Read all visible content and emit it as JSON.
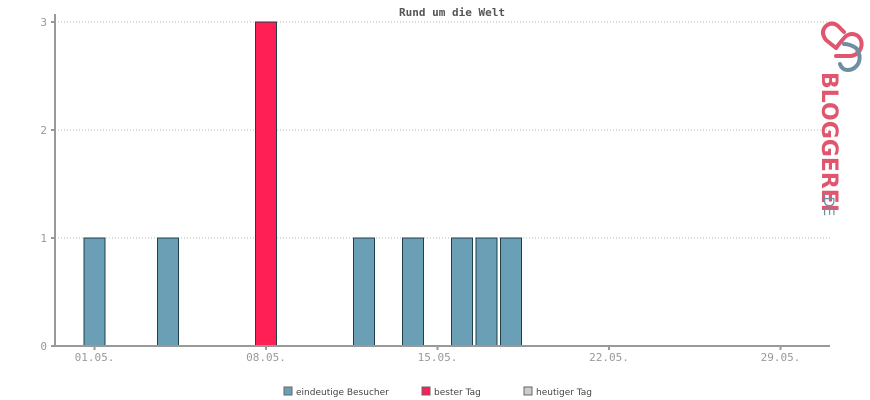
{
  "chart_data": {
    "type": "bar",
    "title": "Rund um die Welt",
    "ylim": [
      0,
      3
    ],
    "yticks": [
      0,
      1,
      2,
      3
    ],
    "x_range": [
      1,
      31
    ],
    "x_ticks": [
      {
        "day": 1,
        "label": "01.05."
      },
      {
        "day": 8,
        "label": "08.05."
      },
      {
        "day": 15,
        "label": "15.05."
      },
      {
        "day": 22,
        "label": "22.05."
      },
      {
        "day": 29,
        "label": "29.05."
      }
    ],
    "grid": true,
    "series": [
      {
        "name": "eindeutige Besucher",
        "color": "#6a9fb5",
        "points": [
          {
            "day": 1,
            "value": 1
          },
          {
            "day": 4,
            "value": 1
          },
          {
            "day": 12,
            "value": 1
          },
          {
            "day": 14,
            "value": 1
          },
          {
            "day": 16,
            "value": 1
          },
          {
            "day": 17,
            "value": 1
          },
          {
            "day": 18,
            "value": 1
          }
        ]
      },
      {
        "name": "bester Tag",
        "color": "#ff1f55",
        "points": [
          {
            "day": 8,
            "value": 3
          }
        ]
      },
      {
        "name": "heutiger Tag",
        "color": "#cccccc",
        "points": []
      }
    ],
    "legend_position": "bottom"
  },
  "brand": {
    "logo_text": "BLOGGEREI",
    "logo_suffix": ".DE",
    "primary_color": "#e0566f",
    "secondary_color": "#6e8fa3"
  }
}
